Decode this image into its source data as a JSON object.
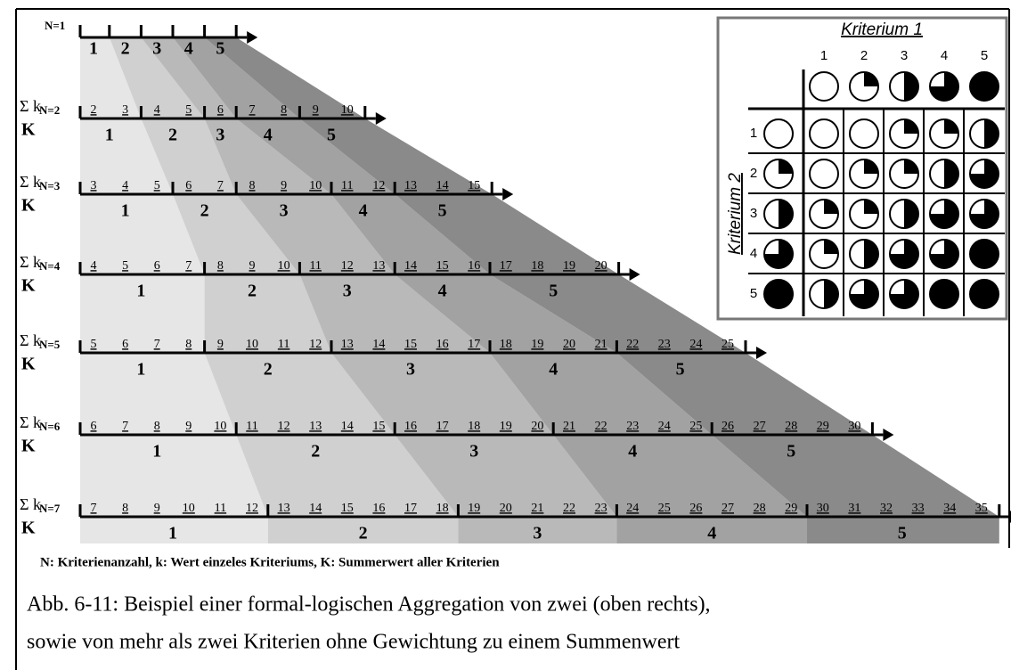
{
  "rows": [
    {
      "n_label": "N=1",
      "classes": [
        1,
        2,
        3,
        4,
        5
      ]
    },
    {
      "sum_symbol": "Σ k",
      "n_label": "N=2",
      "total_symbol": "K",
      "groups": [
        [
          2,
          3
        ],
        [
          4,
          5
        ],
        [
          6
        ],
        [
          7,
          8
        ],
        [
          9,
          10
        ]
      ],
      "classes": [
        1,
        2,
        3,
        4,
        5
      ]
    },
    {
      "sum_symbol": "Σ k",
      "n_label": "N=3",
      "total_symbol": "K",
      "groups": [
        [
          3,
          4,
          5
        ],
        [
          6,
          7
        ],
        [
          8,
          9,
          10
        ],
        [
          11,
          12
        ],
        [
          13,
          14,
          15
        ]
      ],
      "classes": [
        1,
        2,
        3,
        4,
        5
      ]
    },
    {
      "sum_symbol": "Σ k",
      "n_label": "N=4",
      "total_symbol": "K",
      "groups": [
        [
          4,
          5,
          6,
          7
        ],
        [
          8,
          9,
          10
        ],
        [
          11,
          12,
          13
        ],
        [
          14,
          15,
          16
        ],
        [
          17,
          18,
          19,
          20
        ]
      ],
      "classes": [
        1,
        2,
        3,
        4,
        5
      ]
    },
    {
      "sum_symbol": "Σ k",
      "n_label": "N=5",
      "total_symbol": "K",
      "groups": [
        [
          5,
          6,
          7,
          8
        ],
        [
          9,
          10,
          11,
          12
        ],
        [
          13,
          14,
          15,
          16,
          17
        ],
        [
          18,
          19,
          20,
          21
        ],
        [
          22,
          23,
          24,
          25
        ]
      ],
      "classes": [
        1,
        2,
        3,
        4,
        5
      ]
    },
    {
      "sum_symbol": "Σ k",
      "n_label": "N=6",
      "total_symbol": "K",
      "groups": [
        [
          6,
          7,
          8,
          9,
          10
        ],
        [
          11,
          12,
          13,
          14,
          15
        ],
        [
          16,
          17,
          18,
          19,
          20
        ],
        [
          21,
          22,
          23,
          24,
          25
        ],
        [
          26,
          27,
          28,
          29,
          30
        ]
      ],
      "classes": [
        1,
        2,
        3,
        4,
        5
      ]
    },
    {
      "sum_symbol": "Σ k",
      "n_label": "N=7",
      "total_symbol": "K",
      "groups": [
        [
          7,
          8,
          9,
          10,
          11,
          12
        ],
        [
          13,
          14,
          15,
          16,
          17,
          18
        ],
        [
          19,
          20,
          21,
          22,
          23
        ],
        [
          24,
          25,
          26,
          27,
          28,
          29
        ],
        [
          30,
          31,
          32,
          33,
          34,
          35
        ]
      ],
      "classes": [
        1,
        2,
        3,
        4,
        5
      ]
    }
  ],
  "legend": "N: Kriterienanzahl, k: Wert einzeles Kriteriums, K: Summerwert aller Kriterien",
  "caption": [
    "Abb. 6-11: Beispiel einer formal-logischen Aggregation von zwei (oben rechts),",
    "sowie von mehr als zwei Kriterien ohne Gewichtung zu einem Summenwert"
  ],
  "inset": {
    "title": "Kriterium 1",
    "side_title": "Kriterium 2",
    "column_labels": [
      1,
      2,
      3,
      4,
      5
    ],
    "row_labels": [
      1,
      2,
      3,
      4,
      5
    ],
    "header_fill": [
      0,
      1,
      2,
      3,
      4
    ],
    "cells": [
      [
        0,
        0,
        1,
        1,
        2
      ],
      [
        0,
        1,
        1,
        2,
        3
      ],
      [
        1,
        1,
        2,
        3,
        3
      ],
      [
        1,
        2,
        3,
        3,
        4
      ],
      [
        2,
        3,
        3,
        4,
        4
      ]
    ]
  }
}
